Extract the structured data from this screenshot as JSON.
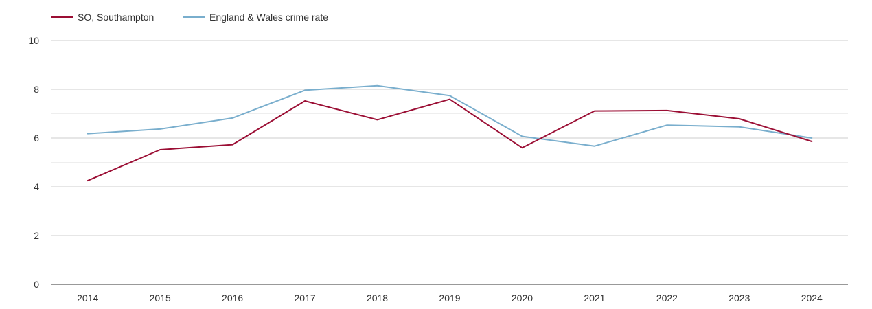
{
  "chart_data": {
    "type": "line",
    "x": [
      "2014",
      "2015",
      "2016",
      "2017",
      "2018",
      "2019",
      "2020",
      "2021",
      "2022",
      "2023",
      "2024"
    ],
    "series": [
      {
        "name": "SO, Southampton",
        "color": "#9b0e34",
        "values": [
          4.25,
          5.52,
          5.73,
          7.52,
          6.75,
          7.59,
          5.6,
          7.11,
          7.13,
          6.79,
          5.86
        ]
      },
      {
        "name": "England & Wales crime rate",
        "color": "#79aecd",
        "values": [
          6.18,
          6.37,
          6.82,
          7.96,
          8.15,
          7.74,
          6.07,
          5.67,
          6.53,
          6.46,
          6.0
        ]
      }
    ],
    "ylim": [
      0,
      10
    ],
    "yticks": [
      "0",
      "2",
      "4",
      "6",
      "8",
      "10"
    ],
    "grid": true,
    "legend": "top-left",
    "title": "",
    "xlabel": "",
    "ylabel": ""
  }
}
